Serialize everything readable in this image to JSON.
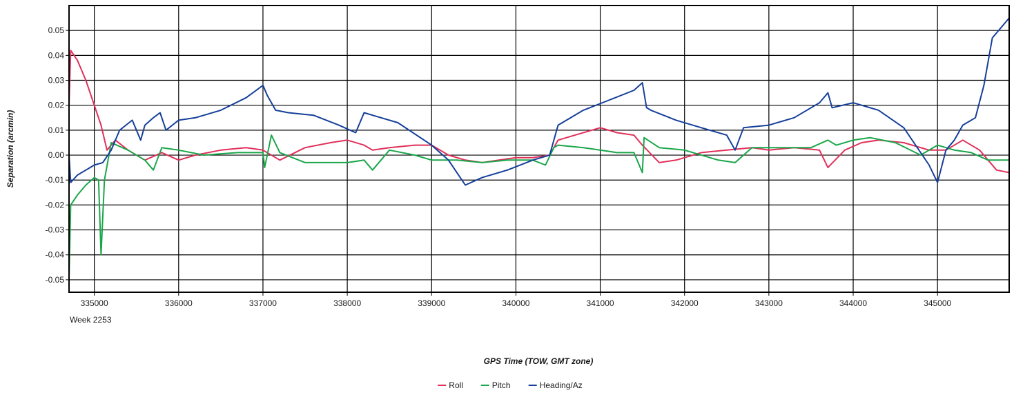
{
  "chart_data": {
    "type": "line",
    "xlabel": "GPS Time (TOW, GMT zone)",
    "ylabel": "Separation (arcmin)",
    "x_sublabel": "Week 2253",
    "xlim": [
      334700,
      345850
    ],
    "ylim": [
      -0.055,
      0.06
    ],
    "x_ticks": [
      335000,
      336000,
      337000,
      338000,
      339000,
      340000,
      341000,
      342000,
      343000,
      344000,
      345000
    ],
    "x_tick_labels": [
      "335000",
      "336000",
      "337000",
      "338000",
      "339000",
      "340000",
      "341000",
      "342000",
      "343000",
      "344000",
      "345000"
    ],
    "y_ticks": [
      -0.05,
      -0.04,
      -0.03,
      -0.02,
      -0.01,
      0.0,
      0.01,
      0.02,
      0.03,
      0.04,
      0.05
    ],
    "y_tick_labels": [
      "-0.05",
      "-0.04",
      "-0.03",
      "-0.02",
      "-0.01",
      "0.00",
      "0.01",
      "0.02",
      "0.03",
      "0.04",
      "0.05"
    ],
    "grid": true,
    "legend_position": "bottom-center",
    "series": [
      {
        "name": "Roll",
        "color": "#e0305a",
        "x": [
          334700,
          334720,
          334800,
          334900,
          335000,
          335080,
          335150,
          335250,
          335400,
          335600,
          335800,
          336000,
          336200,
          336500,
          336800,
          337000,
          337200,
          337500,
          337800,
          338000,
          338200,
          338300,
          338500,
          338800,
          339000,
          339200,
          339400,
          339600,
          339800,
          340000,
          340200,
          340400,
          340500,
          340700,
          340900,
          341000,
          341200,
          341400,
          341500,
          341700,
          341900,
          342200,
          342500,
          342800,
          343000,
          343300,
          343600,
          343700,
          343900,
          344100,
          344300,
          344600,
          344900,
          345100,
          345300,
          345500,
          345700,
          345850
        ],
        "y": [
          0.02,
          0.042,
          0.038,
          0.03,
          0.02,
          0.012,
          0.002,
          0.006,
          0.002,
          -0.002,
          0.001,
          -0.002,
          0.0,
          0.002,
          0.003,
          0.002,
          -0.002,
          0.003,
          0.005,
          0.006,
          0.004,
          0.002,
          0.003,
          0.004,
          0.004,
          0.0,
          -0.002,
          -0.003,
          -0.002,
          -0.001,
          -0.001,
          0.0,
          0.006,
          0.008,
          0.01,
          0.011,
          0.009,
          0.008,
          0.004,
          -0.003,
          -0.002,
          0.001,
          0.002,
          0.003,
          0.002,
          0.003,
          0.002,
          -0.005,
          0.002,
          0.005,
          0.006,
          0.005,
          0.002,
          0.002,
          0.006,
          0.002,
          -0.006,
          -0.007
        ]
      },
      {
        "name": "Pitch",
        "color": "#1aa64a",
        "x": [
          334700,
          334720,
          334800,
          334900,
          335000,
          335050,
          335080,
          335120,
          335200,
          335400,
          335600,
          335700,
          335800,
          336000,
          336300,
          336700,
          337000,
          337020,
          337100,
          337200,
          337500,
          337800,
          338000,
          338200,
          338300,
          338500,
          338800,
          339000,
          339300,
          339600,
          339900,
          340200,
          340350,
          340450,
          340500,
          340800,
          341000,
          341200,
          341400,
          341500,
          341520,
          341700,
          342000,
          342400,
          342600,
          342800,
          343200,
          343500,
          343700,
          343800,
          344000,
          344200,
          344500,
          344800,
          345000,
          345200,
          345400,
          345600,
          345850
        ],
        "y": [
          -0.05,
          -0.02,
          -0.016,
          -0.012,
          -0.009,
          -0.01,
          -0.04,
          -0.01,
          0.005,
          0.002,
          -0.002,
          -0.006,
          0.003,
          0.002,
          0.0,
          0.001,
          0.001,
          -0.005,
          0.008,
          0.001,
          -0.003,
          -0.003,
          -0.003,
          -0.002,
          -0.006,
          0.002,
          0.0,
          -0.002,
          -0.002,
          -0.003,
          -0.002,
          -0.002,
          -0.004,
          0.003,
          0.004,
          0.003,
          0.002,
          0.001,
          0.001,
          -0.007,
          0.007,
          0.003,
          0.002,
          -0.002,
          -0.003,
          0.003,
          0.003,
          0.003,
          0.006,
          0.004,
          0.006,
          0.007,
          0.005,
          0.0,
          0.004,
          0.002,
          0.001,
          -0.002,
          -0.002
        ]
      },
      {
        "name": "Heading/Az",
        "color": "#153f9a",
        "x": [
          334700,
          334720,
          334800,
          335000,
          335100,
          335200,
          335300,
          335450,
          335550,
          335600,
          335700,
          335780,
          335850,
          336000,
          336200,
          336500,
          336800,
          337000,
          337050,
          337150,
          337300,
          337600,
          337900,
          338100,
          338200,
          338300,
          338600,
          339000,
          339200,
          339400,
          339600,
          339900,
          340200,
          340400,
          340500,
          340800,
          341100,
          341400,
          341500,
          341550,
          341600,
          341900,
          342200,
          342500,
          342600,
          342700,
          343000,
          343300,
          343600,
          343700,
          343750,
          344000,
          344300,
          344600,
          344900,
          345000,
          345100,
          345200,
          345300,
          345450,
          345550,
          345650,
          345850
        ],
        "y": [
          0.0,
          -0.011,
          -0.008,
          -0.004,
          -0.003,
          0.002,
          0.01,
          0.014,
          0.006,
          0.012,
          0.015,
          0.017,
          0.01,
          0.014,
          0.015,
          0.018,
          0.023,
          0.028,
          0.024,
          0.018,
          0.017,
          0.016,
          0.012,
          0.009,
          0.017,
          0.016,
          0.013,
          0.004,
          -0.002,
          -0.012,
          -0.009,
          -0.006,
          -0.002,
          0.0,
          0.012,
          0.018,
          0.022,
          0.026,
          0.029,
          0.019,
          0.018,
          0.014,
          0.011,
          0.008,
          0.002,
          0.011,
          0.012,
          0.015,
          0.021,
          0.025,
          0.019,
          0.021,
          0.018,
          0.011,
          -0.004,
          -0.011,
          0.002,
          0.006,
          0.012,
          0.015,
          0.028,
          0.047,
          0.055
        ]
      }
    ]
  }
}
